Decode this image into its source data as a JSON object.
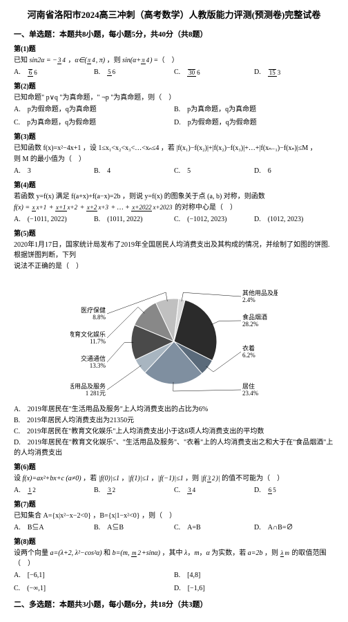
{
  "meta": {
    "title": "河南省洛阳市2024高三冲刺（高考数学）人教版能力评测(预测卷)完整试卷"
  },
  "section1": {
    "head": "一、单选题：本题共8小题，每小题5分，共40分（共8题）"
  },
  "q1": {
    "num": "第(1)题",
    "text": "已知 sin2α = -3/4 ，α∈(π/4, π)，则 sin(α + π/4) = （　）",
    "A": "A.　√6/6",
    "B": "B.　5/6",
    "C": "C.　√30/6",
    "D": "D.　√15/3"
  },
  "q2": {
    "num": "第(2)题",
    "text1": "已知命题\" p∨q \"为真命题，\" ¬p \"为真命题，则（　）",
    "A": "A.　p为假命题，q为真命题",
    "B": "B.　p为真命题，q为真命题",
    "C": "C.　p为真命题，q为假命题",
    "D": "D.　p为假命题，q为假命题"
  },
  "q3": {
    "num": "第(3)题",
    "text1": "已知函数 f(x)=x²−4x+1 ，设 1≤x₁<x₂<x₃<…<xₙ≤4 ，若 |f(x₁)−f(x₂)|+|f(x₂)−f(x₃)|+…+|f(xₙ₋₁)−f(xₙ)|≤M ，",
    "text2": "则 M 的最小值为（　）",
    "A": "A.　3",
    "B": "B.　4",
    "C": "C.　5",
    "D": "D.　6"
  },
  "q4": {
    "num": "第(4)题",
    "text1": "若函数 y=f(x) 满足 f(a+x)+f(a−x)=2b ，则说 y=f(x) 的图象关于点 (a, b) 对称，则函数",
    "text2": "f(x) = x/(x+1) + (x+1)/(x+2) + (x+2)/(x+3) + … + (x+2022)/(x+2023) 的对称中心是（　）",
    "A": "A.　(−1011, 2022)",
    "B": "B.　(1011, 2022)",
    "C": "C.　(−1012, 2023)",
    "D": "D.　(1012, 2023)"
  },
  "q5": {
    "num": "第(5)题",
    "text1": "2020年1月17日，国家统计局发布了2019年全国居民人均消费支出及其构成的情况，并绘制了如图的饼图.根据饼图判断，下列",
    "text2": "说法不正确的是（　）",
    "pie": {
      "segments": [
        {
          "label": "食品烟酒",
          "value": 28.2,
          "color": "#2b2b2b",
          "note": "28.2%"
        },
        {
          "label": "衣着",
          "value": 6.2,
          "color": "#5a6a7a",
          "note": "6.2%"
        },
        {
          "label": "居住",
          "value": 23.4,
          "color": "#7f8fa0",
          "note": "23.4%"
        },
        {
          "label": "生活用品及服务",
          "value": 0,
          "color": "#a8b5c0",
          "note": "1 281元"
        },
        {
          "label": "交通通信",
          "value": 13.3,
          "color": "#4a4a4a",
          "note": "13.3%"
        },
        {
          "label": "教育文化娱乐",
          "value": 11.7,
          "color": "#888",
          "note": "11.7%"
        },
        {
          "label": "医疗保健",
          "value": 8.8,
          "color": "#c0c0c0",
          "note": "8.8%"
        },
        {
          "label": "其他用品及服务",
          "value": 2.4,
          "color": "#d8d8d8",
          "note": "2.4%"
        }
      ],
      "seg_extra_value": 6.0
    },
    "A": "A.　2019年居民在\"生活用品及服务\"上人均消费支出的占比为6%",
    "B": "B.　2019年居民人均消费支出为21350元",
    "C": "C.　2019年居民在\"教育文化娱乐\"上人均消费支出小于这8项人均消费支出的平均数",
    "D": "D.　2019年居民在\"教育文化娱乐\"、\"生活用品及服务\"、\"衣着\"上的人均消费支出之和大于在\"食品烟酒\"上的人均消费支出"
  },
  "q6": {
    "num": "第(6)题",
    "text": "设 f(x)=ax²+bx+c (a≠0) ，若 |f(0)|≤1 ，|f(1)|≤1 ，|f(−1)|≤1 ，则 |f(3/2)| 的值不可能为（　）",
    "A": "A.　1/2",
    "B": "B.　3/2",
    "C": "C.　3/4",
    "D": "D.　6/5"
  },
  "q7": {
    "num": "第(7)题",
    "text": "已知集合 A={x|x²−x−2<0} ，B={x|1−x²<0} ，则（　）",
    "A": "A.　B⊆A",
    "B": "B.　A⊆B",
    "C": "C.　A=B",
    "D": "D.　A∩B=∅"
  },
  "q8": {
    "num": "第(8)题",
    "text": "设两个向量 a=(λ+2, λ²−cos²α) 和 b=(m, m/2+sinα) ，其中 λ，m，α 为实数，若 a=2b ，则 λ/m 的取值范围（　）",
    "A": "A.　[−6,1]",
    "B": "B.　[4,8]",
    "C": "C.　(−∞,1]",
    "D": "D.　[−1,6]"
  },
  "section2": {
    "head": "二、多选题：本题共3小题，每小题6分，共18分（共3题）"
  }
}
